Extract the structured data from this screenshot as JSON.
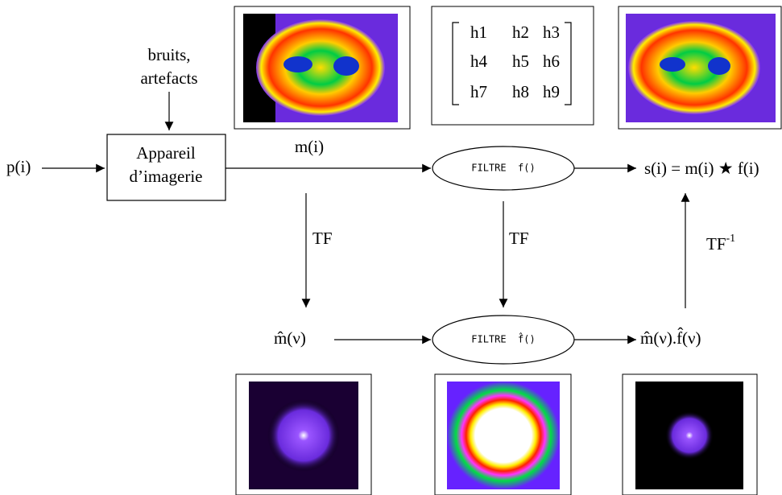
{
  "noise_label": [
    "bruits,",
    "artefacts"
  ],
  "input_label": "p(i)",
  "device": [
    "Appareil",
    "d’imagerie"
  ],
  "signal_label": "m(i)",
  "filter_spatial": "FILTRE  f()",
  "output_label": "s(i) = m(i) ★ f(i)",
  "transforms": [
    "TF",
    "TF"
  ],
  "inverse_transform": {
    "base": "TF",
    "exponent": "-1"
  },
  "spectrum_label": "m̂(ν)",
  "filter_frequency": "FILTRE  f̂()",
  "product_label": "m̂(ν).f̂(ν)",
  "kernel": [
    [
      "h1",
      "h2",
      "h3"
    ],
    [
      "h4",
      "h5",
      "h6"
    ],
    [
      "h7",
      "h8",
      "h9"
    ]
  ]
}
